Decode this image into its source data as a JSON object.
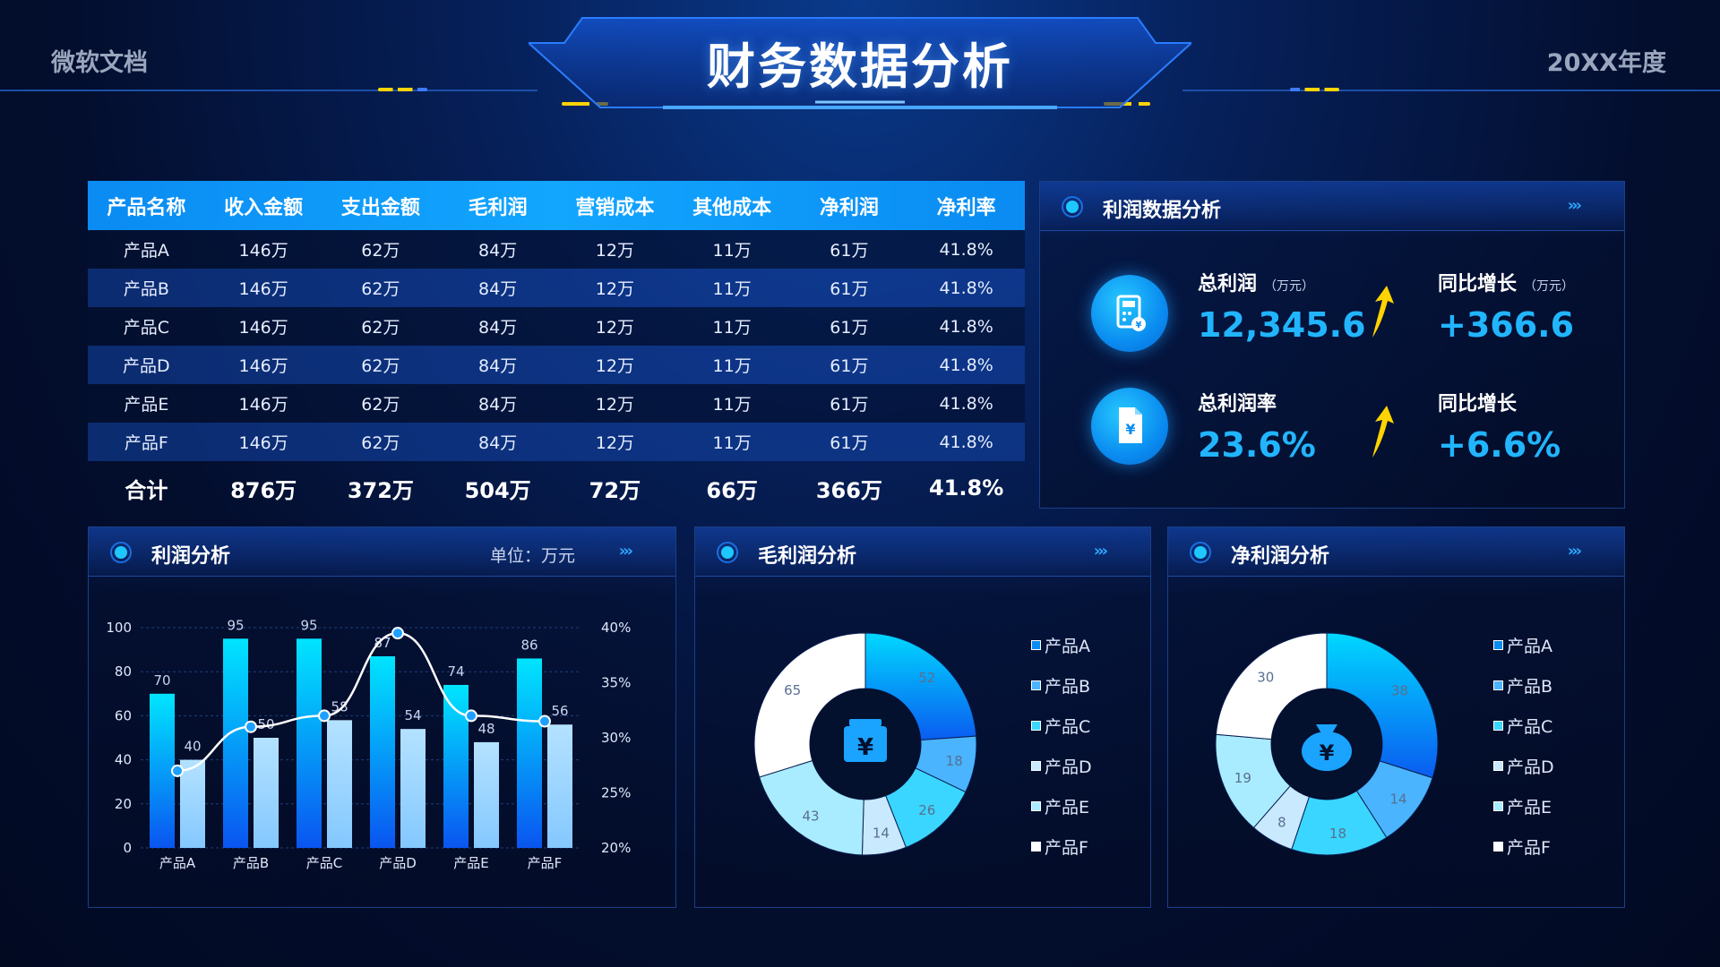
{
  "header": {
    "left": "微软文档",
    "title": "财务数据分析",
    "right": "20XX年度"
  },
  "table": {
    "headers": [
      "产品名称",
      "收入金额",
      "支出金额",
      "毛利润",
      "营销成本",
      "其他成本",
      "净利润",
      "净利率"
    ],
    "rows": [
      [
        "产品A",
        "146万",
        "62万",
        "84万",
        "12万",
        "11万",
        "61万",
        "41.8%"
      ],
      [
        "产品B",
        "146万",
        "62万",
        "84万",
        "12万",
        "11万",
        "61万",
        "41.8%"
      ],
      [
        "产品C",
        "146万",
        "62万",
        "84万",
        "12万",
        "11万",
        "61万",
        "41.8%"
      ],
      [
        "产品D",
        "146万",
        "62万",
        "84万",
        "12万",
        "11万",
        "61万",
        "41.8%"
      ],
      [
        "产品E",
        "146万",
        "62万",
        "84万",
        "12万",
        "11万",
        "61万",
        "41.8%"
      ],
      [
        "产品F",
        "146万",
        "62万",
        "84万",
        "12万",
        "11万",
        "61万",
        "41.8%"
      ]
    ],
    "total": [
      "合计",
      "876万",
      "372万",
      "504万",
      "72万",
      "66万",
      "366万",
      "41.8%"
    ]
  },
  "profit_panel": {
    "title": "利润数据分析",
    "arrows": "›››",
    "total_profit_label": "总利润",
    "total_profit_unit": "（万元）",
    "total_profit_value": "12,345.6",
    "yoy1_label": "同比增长",
    "yoy1_unit": "（万元）",
    "yoy1_value": "+366.6",
    "margin_label": "总利润率",
    "margin_value": "23.6%",
    "yoy2_label": "同比增长",
    "yoy2_value": "+6.6%",
    "icons": [
      "calculator-icon",
      "document-yen-icon",
      "arrow-up-icon"
    ]
  },
  "panels": {
    "profit_analysis": {
      "title": "利润分析",
      "unit": "单位：万元",
      "arrows": "›››"
    },
    "gross_analysis": {
      "title": "毛利润分析",
      "arrows": "›››"
    },
    "net_analysis": {
      "title": "净利润分析",
      "arrows": "›››"
    }
  },
  "colors": {
    "accent": "#22b5ff",
    "bar_primary_top": "#00e5ff",
    "bar_primary_bottom": "#0a55f0",
    "bar_secondary": "#9fd6ff",
    "arrow": "#ffd400"
  },
  "chart_data": [
    {
      "type": "bar",
      "title": "利润分析",
      "categories": [
        "产品A",
        "产品B",
        "产品C",
        "产品D",
        "产品E",
        "产品F"
      ],
      "series": [
        {
          "values": [
            70,
            95,
            95,
            87,
            74,
            86
          ]
        },
        {
          "values": [
            40,
            50,
            58,
            54,
            48,
            56
          ]
        }
      ],
      "line_series": {
        "values": [
          27,
          31,
          32,
          39.5,
          32,
          31.5
        ]
      },
      "ylim": [
        0,
        100
      ],
      "yticks": [
        "0",
        "20",
        "40",
        "60",
        "80",
        "100"
      ],
      "y2lim": [
        20,
        40
      ],
      "y2ticks": [
        "20%",
        "25%",
        "30%",
        "35%",
        "40%"
      ],
      "grid": true
    },
    {
      "type": "pie",
      "title": "毛利润分析",
      "donut": true,
      "center_icon": "yen-box-icon",
      "labels": [
        "产品A",
        "产品B",
        "产品C",
        "产品D",
        "产品E",
        "产品F"
      ],
      "values": [
        52,
        18,
        26,
        14,
        43,
        65
      ],
      "colors": [
        "#0a8cf0",
        "#4ab4ff",
        "#3ad6ff",
        "#c9e9ff",
        "#a9ecff",
        "#ffffff"
      ],
      "legend": "right"
    },
    {
      "type": "pie",
      "title": "净利润分析",
      "donut": true,
      "center_icon": "money-bag-icon",
      "labels": [
        "产品A",
        "产品B",
        "产品C",
        "产品D",
        "产品E",
        "产品F"
      ],
      "values": [
        38,
        14,
        18,
        8,
        19,
        30
      ],
      "colors": [
        "#0a8cf0",
        "#4ab4ff",
        "#3ad6ff",
        "#c9e9ff",
        "#a9ecff",
        "#ffffff"
      ],
      "legend": "right"
    }
  ]
}
